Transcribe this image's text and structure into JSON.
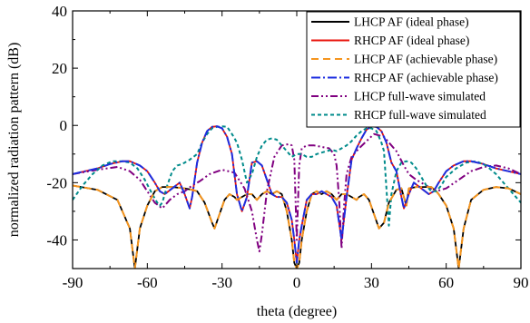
{
  "chart_data": {
    "type": "line",
    "xlabel": "theta (degree)",
    "ylabel": "normalized radiation pattern (dB)",
    "xlim": [
      -90,
      90
    ],
    "ylim": [
      -50,
      40
    ],
    "xticks": [
      -90,
      -60,
      -30,
      0,
      30,
      60,
      90
    ],
    "yticks": [
      -40,
      -20,
      0,
      20,
      40
    ],
    "legend_position": "top-right",
    "grid": false,
    "series": [
      {
        "name": "LHCP AF (ideal phase)",
        "color": "#000000",
        "dash": "solid",
        "x": [
          -90,
          -80,
          -72,
          -67,
          -65,
          -63,
          -60,
          -57,
          -54,
          -50,
          -45,
          -42,
          -40,
          -37,
          -34,
          -33,
          -31,
          -29,
          -27,
          -25,
          -24,
          -22,
          -20,
          -18,
          -16,
          -14,
          -12,
          -10,
          -8,
          -6,
          -4,
          -2,
          -1,
          0,
          1,
          2,
          4,
          6,
          8,
          10,
          12,
          14,
          16,
          18,
          20,
          22,
          24,
          25,
          27,
          29,
          31,
          33,
          35,
          37,
          40,
          42,
          43,
          44,
          45,
          48,
          50,
          54,
          56,
          57,
          60,
          63,
          65,
          67,
          70,
          75,
          80,
          85,
          90
        ],
        "y": [
          -21,
          -22.5,
          -26,
          -36,
          -50,
          -36,
          -28,
          -23,
          -21.5,
          -21.5,
          -22,
          -22.5,
          -23,
          -27,
          -34,
          -36,
          -31,
          -26,
          -24,
          -25,
          -26,
          -25,
          -24,
          -24,
          -26,
          -24,
          -23,
          -24,
          -23,
          -24,
          -30,
          -40,
          -48,
          -50,
          -48,
          -40,
          -30,
          -24,
          -23,
          -24,
          -23,
          -24,
          -26,
          -24,
          -24,
          -25,
          -26,
          -25,
          -24,
          -26,
          -31,
          -36,
          -34,
          -27,
          -22.5,
          -22,
          -25,
          -28,
          -22,
          -21.5,
          -21.5,
          -21.5,
          -23,
          -24,
          -28,
          -36,
          -50,
          -36,
          -26,
          -22.5,
          -21.5,
          -22,
          -24
        ]
      },
      {
        "name": "RHCP AF (ideal phase)",
        "color": "#e8140c",
        "dash": "solid",
        "x": [
          -90,
          -80,
          -75,
          -70,
          -67,
          -63,
          -60,
          -57,
          -55,
          -53,
          -50,
          -47,
          -45,
          -43,
          -42,
          -40,
          -38,
          -36,
          -34,
          -32,
          -30,
          -28,
          -26,
          -24,
          -22,
          -20,
          -18,
          -16,
          -14,
          -12,
          -10,
          -8,
          -6,
          -4,
          -2,
          -1,
          0,
          1,
          2,
          4,
          6,
          8,
          10,
          12,
          14,
          16,
          18,
          20,
          22,
          24,
          26,
          28,
          30,
          32,
          34,
          36,
          38,
          40,
          42,
          43,
          45,
          47,
          50,
          53,
          55,
          57,
          60,
          63,
          67,
          70,
          75,
          80,
          90
        ],
        "y": [
          -17,
          -15,
          -13.5,
          -12.5,
          -12.5,
          -14,
          -16,
          -20,
          -23,
          -24,
          -22,
          -20,
          -24,
          -29,
          -25,
          -13,
          -6,
          -2,
          -0.5,
          -0.3,
          -1,
          -4,
          -10,
          -24,
          -30,
          -25,
          -13,
          -12.5,
          -14,
          -19,
          -24,
          -25,
          -25,
          -27,
          -33,
          -40,
          -48,
          -40,
          -35,
          -26,
          -24,
          -24,
          -23,
          -24,
          -25,
          -28,
          -40,
          -25,
          -12,
          -8,
          -4.5,
          -1.5,
          -0.3,
          -0.5,
          -2,
          -6,
          -13,
          -16,
          -25,
          -29,
          -24,
          -20,
          -22,
          -24,
          -23,
          -20,
          -16,
          -14,
          -12.5,
          -12.5,
          -13.5,
          -15,
          -17
        ]
      },
      {
        "name": "LHCP AF (achievable phase)",
        "color": "#f5951e",
        "dash": "8,5",
        "x": [
          -90,
          -80,
          -72,
          -67,
          -65,
          -63,
          -60,
          -57,
          -54,
          -50,
          -45,
          -42,
          -40,
          -37,
          -34,
          -33,
          -31,
          -29,
          -27,
          -25,
          -24,
          -22,
          -20,
          -18,
          -16,
          -14,
          -12,
          -10,
          -8,
          -6,
          -4,
          -2,
          -1,
          0,
          1,
          2,
          4,
          6,
          8,
          10,
          12,
          14,
          16,
          18,
          20,
          22,
          24,
          25,
          27,
          29,
          31,
          33,
          35,
          37,
          40,
          42,
          43,
          44,
          45,
          48,
          50,
          54,
          56,
          57,
          60,
          63,
          65,
          67,
          70,
          75,
          80,
          85,
          90
        ],
        "y": [
          -21,
          -22.5,
          -26,
          -36,
          -50,
          -36,
          -28,
          -23,
          -21.5,
          -21.5,
          -22,
          -22.5,
          -23,
          -27,
          -34,
          -36,
          -31,
          -26,
          -24,
          -25,
          -26,
          -25,
          -24,
          -24,
          -26,
          -24,
          -23,
          -24,
          -23,
          -24,
          -30,
          -40,
          -48,
          -50,
          -48,
          -40,
          -30,
          -24,
          -23,
          -24,
          -23,
          -24,
          -26,
          -24,
          -24,
          -25,
          -26,
          -25,
          -24,
          -26,
          -31,
          -36,
          -34,
          -27,
          -22.5,
          -22,
          -25,
          -28,
          -22,
          -21.5,
          -21.5,
          -21.5,
          -23,
          -24,
          -28,
          -36,
          -50,
          -36,
          -26,
          -22.5,
          -21.5,
          -22,
          -24
        ]
      },
      {
        "name": "RHCP AF (achievable phase)",
        "color": "#1c2ee0",
        "dash": "10,3,2,3",
        "x": [
          -90,
          -80,
          -75,
          -70,
          -67,
          -63,
          -60,
          -57,
          -55,
          -53,
          -50,
          -47,
          -45,
          -43,
          -42,
          -40,
          -38,
          -36,
          -34,
          -32,
          -30,
          -28,
          -26,
          -24,
          -22,
          -20,
          -18,
          -16,
          -14,
          -12,
          -10,
          -8,
          -6,
          -4,
          -2,
          -1,
          0,
          1,
          2,
          4,
          6,
          8,
          10,
          12,
          14,
          16,
          18,
          20,
          22,
          24,
          26,
          28,
          30,
          32,
          34,
          36,
          38,
          40,
          42,
          43,
          45,
          47,
          50,
          53,
          55,
          57,
          60,
          63,
          67,
          70,
          75,
          80,
          90
        ],
        "y": [
          -17,
          -15,
          -13.5,
          -12.5,
          -12.5,
          -14,
          -16,
          -20,
          -23,
          -24,
          -22,
          -20,
          -24,
          -29,
          -25,
          -13,
          -6,
          -2,
          -0.5,
          -0.3,
          -1,
          -4,
          -10,
          -24,
          -30,
          -25,
          -13,
          -12.5,
          -14,
          -19,
          -24,
          -25,
          -25,
          -27,
          -33,
          -40,
          -48,
          -40,
          -35,
          -26,
          -24,
          -24,
          -23,
          -24,
          -25,
          -28,
          -40,
          -25,
          -12,
          -8,
          -4.5,
          -1.5,
          -0.3,
          -0.5,
          -2,
          -6,
          -13,
          -16,
          -25,
          -29,
          -24,
          -20,
          -22,
          -24,
          -23,
          -20,
          -16,
          -14,
          -12.5,
          -12.5,
          -13.5,
          -15,
          -17
        ]
      },
      {
        "name": "LHCP full-wave simulated",
        "color": "#800080",
        "dash": "8,3,2,3,2,3",
        "x": [
          -90,
          -80,
          -72,
          -67,
          -63,
          -60,
          -57,
          -54,
          -51,
          -48,
          -45,
          -42,
          -39,
          -35,
          -30,
          -25,
          -21,
          -18,
          -16,
          -15,
          -14,
          -12,
          -9,
          -6,
          -3,
          -2,
          -1,
          0,
          1,
          2,
          4,
          7,
          10,
          13,
          15,
          16,
          17,
          18,
          19,
          20,
          22,
          25,
          28,
          31,
          35,
          40,
          43,
          45,
          48,
          52,
          56,
          60,
          65,
          70,
          75,
          80,
          85,
          90
        ],
        "y": [
          -17,
          -15.5,
          -14.5,
          -16,
          -19,
          -23,
          -27,
          -29,
          -26,
          -24,
          -23,
          -21,
          -19.5,
          -17,
          -15.5,
          -16.5,
          -22,
          -30,
          -40,
          -44,
          -38,
          -23,
          -11,
          -7,
          -6.5,
          -7,
          -12,
          -40,
          -14,
          -8,
          -7,
          -7,
          -7.5,
          -8,
          -10,
          -14,
          -26,
          -43,
          -28,
          -17,
          -11,
          -8,
          -5.5,
          -3,
          -4,
          -9,
          -14,
          -17,
          -19,
          -21,
          -23,
          -22,
          -19,
          -16,
          -14.5,
          -14,
          -15,
          -17
        ]
      },
      {
        "name": "RHCP full-wave simulated",
        "color": "#008b8b",
        "dash": "4,3",
        "x": [
          -90,
          -86,
          -82,
          -78,
          -74,
          -70,
          -67,
          -64,
          -61,
          -58,
          -56,
          -55,
          -54,
          -52,
          -50,
          -48,
          -46,
          -43,
          -40,
          -38,
          -36,
          -34,
          -32,
          -30,
          -28,
          -26,
          -24,
          -22,
          -20,
          -18,
          -16,
          -14,
          -12,
          -10,
          -8,
          -6,
          -4,
          -2,
          0,
          2,
          4,
          6,
          8,
          10,
          12,
          14,
          16,
          18,
          20,
          22,
          24,
          26,
          28,
          30,
          32,
          34,
          35,
          36,
          37,
          38,
          40,
          42,
          44,
          46,
          48,
          50,
          52,
          54,
          56,
          58,
          60,
          64,
          68,
          72,
          76,
          80,
          84,
          88,
          90
        ],
        "y": [
          -26,
          -21,
          -17,
          -14,
          -12.5,
          -12.5,
          -13,
          -15,
          -19,
          -24,
          -27,
          -28,
          -27,
          -21,
          -16,
          -14,
          -13.5,
          -12,
          -10,
          -6,
          -3,
          -1,
          -0.5,
          -0.3,
          -0.5,
          -3,
          -6,
          -12,
          -20,
          -17,
          -11,
          -7,
          -5,
          -4.5,
          -5,
          -7,
          -9,
          -11,
          -10,
          -10,
          -11,
          -11,
          -10,
          -9.5,
          -9,
          -8.5,
          -9,
          -8,
          -7,
          -5.5,
          -3.5,
          -2,
          -1,
          -1,
          -2,
          -6,
          -9,
          -22,
          -35,
          -24,
          -16,
          -13,
          -12.5,
          -13,
          -15,
          -18,
          -21,
          -23,
          -23,
          -21,
          -18,
          -15,
          -13,
          -12.5,
          -14,
          -17,
          -21,
          -25,
          -27
        ]
      }
    ]
  }
}
